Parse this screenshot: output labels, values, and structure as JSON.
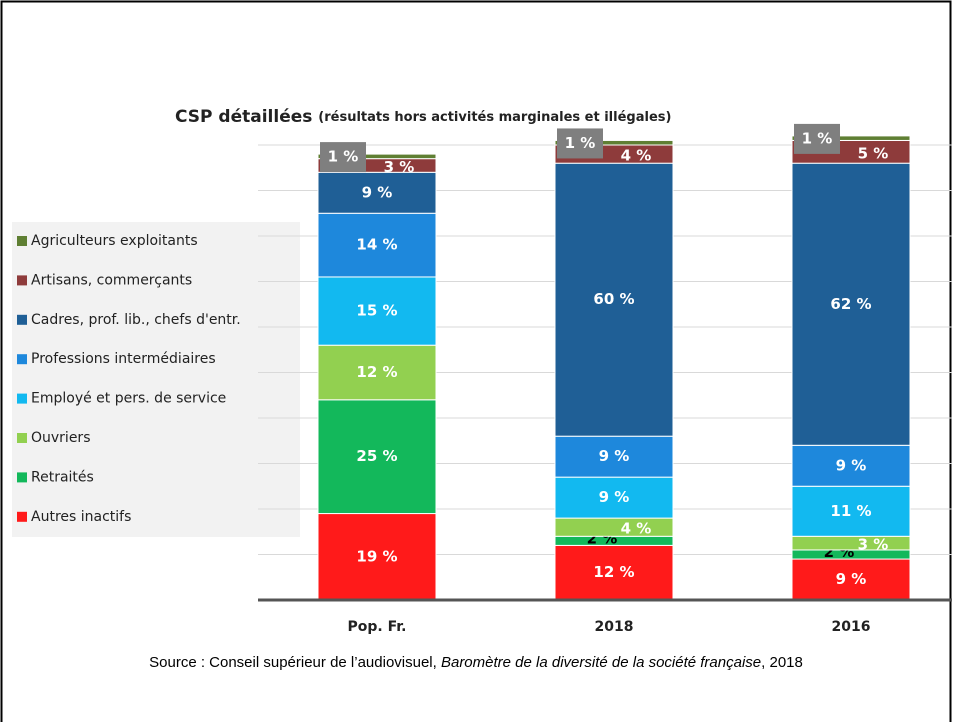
{
  "chart_data": {
    "type": "stacked_bar",
    "title": "CSP détaillées",
    "subtitle": "(résultats hors activités marginales et illégales)",
    "categories": [
      "Pop. Fr.",
      "2018",
      "2016"
    ],
    "series": [
      {
        "name": "Autres inactifs",
        "color": "#ff1a1a",
        "values": [
          19,
          12,
          9
        ],
        "value_labels": [
          "19 %",
          "12 %",
          "9 %"
        ]
      },
      {
        "name": "Retraités",
        "color": "#13b85b",
        "values": [
          25,
          2,
          2
        ],
        "value_labels": [
          "25 %",
          "2 %",
          "2 %"
        ]
      },
      {
        "name": "Ouvriers",
        "color": "#92d050",
        "values": [
          12,
          4,
          3
        ],
        "value_labels": [
          "12 %",
          "4 %",
          "3 %"
        ]
      },
      {
        "name": "Employé et pers. de service",
        "color": "#12b9f0",
        "values": [
          15,
          9,
          11
        ],
        "value_labels": [
          "15 %",
          "9 %",
          "11 %"
        ]
      },
      {
        "name": "Professions intermédiaires",
        "color": "#1e88dc",
        "values": [
          14,
          9,
          9
        ],
        "value_labels": [
          "14 %",
          "9 %",
          "9 %"
        ]
      },
      {
        "name": "Cadres, prof. lib., chefs d'entr.",
        "color": "#1f5f96",
        "values": [
          9,
          60,
          62
        ],
        "value_labels": [
          "9 %",
          "60 %",
          "62 %"
        ]
      },
      {
        "name": "Artisans, commerçants",
        "color": "#8e3b3b",
        "values": [
          3,
          4,
          5
        ],
        "value_labels": [
          "3 %",
          "4 %",
          "5 %"
        ]
      },
      {
        "name": "Agriculteurs exploitants",
        "color": "#5f7f33",
        "values": [
          1,
          1,
          1
        ],
        "value_labels": [
          "1 %",
          "1 %",
          "1 %"
        ]
      }
    ],
    "ylim": [
      0,
      100
    ],
    "yticks": [
      0,
      10,
      20,
      30,
      40,
      50,
      60,
      70,
      80,
      90,
      100
    ],
    "grid": true,
    "legend": "left",
    "source": {
      "prefix": "Source : Conseil supérieur de l’audiovisuel, ",
      "title": "Baromètre de la diversité de la société française",
      "suffix": ", 2018"
    }
  }
}
